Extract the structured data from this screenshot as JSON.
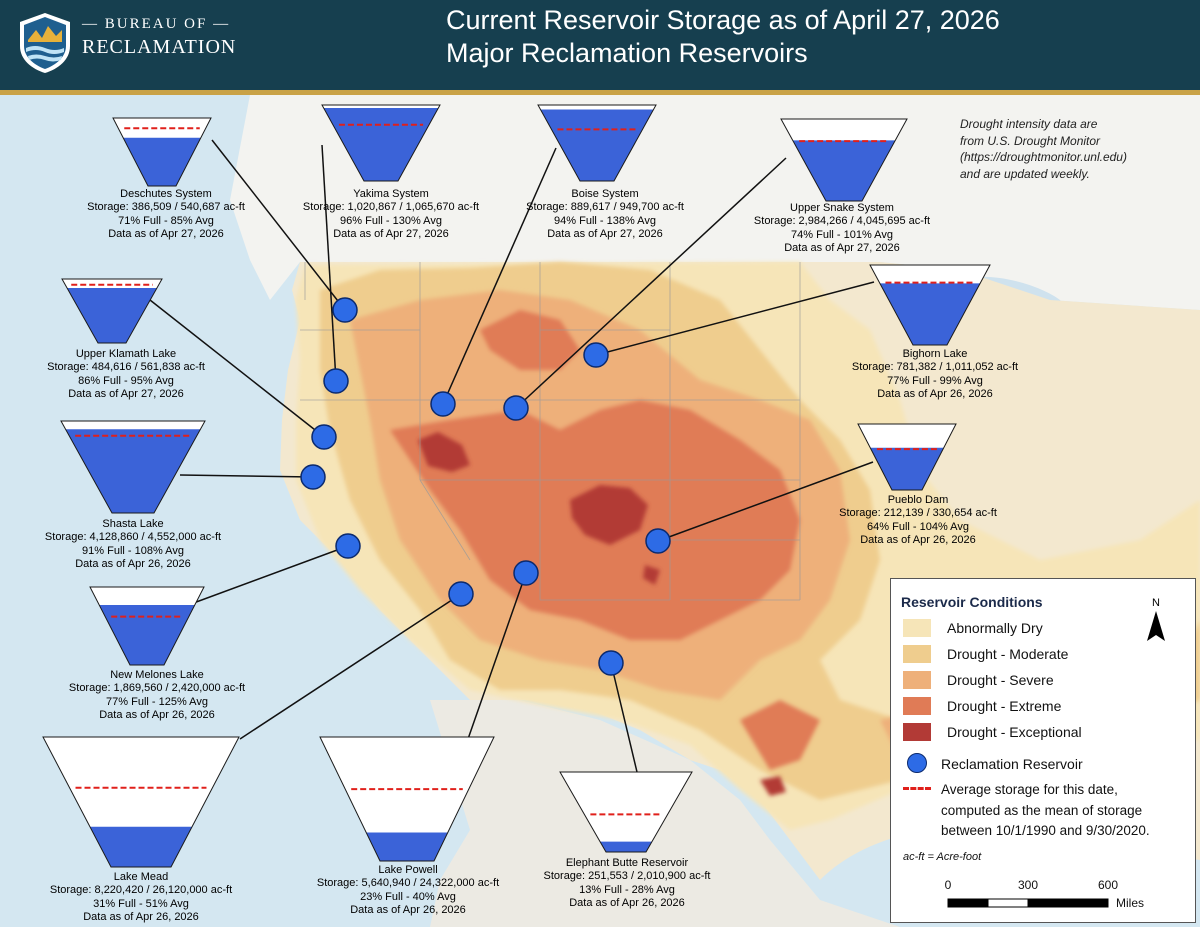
{
  "header": {
    "agency_top": "— BUREAU OF —",
    "agency_bottom": "RECLAMATION",
    "title_line1": "Current Reservoir Storage as of April 27, 2026",
    "title_line2": "Major Reclamation Reservoirs"
  },
  "drought_note": [
    "Drought intensity data are",
    "from U.S. Drought Monitor",
    "(https://droughtmonitor.unl.edu)",
    "and are updated weekly."
  ],
  "reservoirs": [
    {
      "name": "Deschutes System",
      "storage": "Storage: 386,509 / 540,687 ac-ft",
      "pct": "71% Full - 85% Avg",
      "date": "Data as of Apr 27, 2026",
      "fill_fraction": 0.71,
      "avg_fraction": 0.85
    },
    {
      "name": "Yakima System",
      "storage": "Storage: 1,020,867 / 1,065,670 ac-ft",
      "pct": "96% Full - 130% Avg",
      "date": "Data as of Apr 27, 2026",
      "fill_fraction": 0.96,
      "avg_fraction": 0.74
    },
    {
      "name": "Boise System",
      "storage": "Storage: 889,617 / 949,700 ac-ft",
      "pct": "94% Full - 138% Avg",
      "date": "Data as of Apr 27, 2026",
      "fill_fraction": 0.94,
      "avg_fraction": 0.68
    },
    {
      "name": "Upper Snake System",
      "storage": "Storage: 2,984,266 / 4,045,695 ac-ft",
      "pct": "74% Full - 101% Avg",
      "date": "Data as of Apr 27, 2026",
      "fill_fraction": 0.74,
      "avg_fraction": 0.73
    },
    {
      "name": "Upper Klamath Lake",
      "storage": "Storage: 484,616 / 561,838 ac-ft",
      "pct": "86% Full - 95% Avg",
      "date": "Data as of Apr 27, 2026",
      "fill_fraction": 0.86,
      "avg_fraction": 0.91
    },
    {
      "name": "Bighorn Lake",
      "storage": "Storage: 781,382 / 1,011,052 ac-ft",
      "pct": "77% Full - 99% Avg",
      "date": "Data as of Apr 26, 2026",
      "fill_fraction": 0.77,
      "avg_fraction": 0.78
    },
    {
      "name": "Shasta Lake",
      "storage": "Storage: 4,128,860 / 4,552,000 ac-ft",
      "pct": "91% Full - 108% Avg",
      "date": "Data as of Apr 26, 2026",
      "fill_fraction": 0.91,
      "avg_fraction": 0.84
    },
    {
      "name": "Pueblo Dam",
      "storage": "Storage: 212,139 / 330,654 ac-ft",
      "pct": "64% Full - 104% Avg",
      "date": "Data as of Apr 26, 2026",
      "fill_fraction": 0.64,
      "avg_fraction": 0.62
    },
    {
      "name": "New Melones Lake",
      "storage": "Storage: 1,869,560 / 2,420,000 ac-ft",
      "pct": "77% Full - 125% Avg",
      "date": "Data as of Apr 26, 2026",
      "fill_fraction": 0.77,
      "avg_fraction": 0.62
    },
    {
      "name": "Lake Mead",
      "storage": "Storage: 8,220,420 / 26,120,000 ac-ft",
      "pct": "31% Full - 51% Avg",
      "date": "Data as of Apr 26, 2026",
      "fill_fraction": 0.31,
      "avg_fraction": 0.61
    },
    {
      "name": "Lake Powell",
      "storage": "Storage: 5,640,940 / 24,322,000 ac-ft",
      "pct": "23% Full - 40% Avg",
      "date": "Data as of Apr 26, 2026",
      "fill_fraction": 0.23,
      "avg_fraction": 0.58
    },
    {
      "name": "Elephant Butte Reservoir",
      "storage": "Storage: 251,553 / 2,010,900 ac-ft",
      "pct": "13% Full - 28% Avg",
      "date": "Data as of Apr 26, 2026",
      "fill_fraction": 0.13,
      "avg_fraction": 0.47
    }
  ],
  "legend": {
    "title": "Reservoir Conditions",
    "items": [
      {
        "label": "Abnormally Dry",
        "color": "#f6e5b8"
      },
      {
        "label": "Drought - Moderate",
        "color": "#efcd8e"
      },
      {
        "label": "Drought - Severe",
        "color": "#eeb07a"
      },
      {
        "label": "Drought - Extreme",
        "color": "#e07b56"
      },
      {
        "label": "Drought - Exceptional",
        "color": "#b23a36"
      }
    ],
    "reservoir_label": "Reclamation Reservoir",
    "average_lines": [
      "Average storage for this date,",
      "computed as the mean of storage",
      "between 10/1/1990 and 9/30/2020."
    ],
    "acft_note": "ac-ft = Acre-foot",
    "north_label": "N",
    "scale_labels": [
      "0",
      "300",
      "600"
    ],
    "scale_unit": "Miles"
  },
  "colors": {
    "water_fill": "#3b63d8",
    "average_line": "#e0201b",
    "reservoir_dot": "#2d6be6",
    "header_bg": "#163f4f",
    "header_rule": "#c9a247"
  }
}
